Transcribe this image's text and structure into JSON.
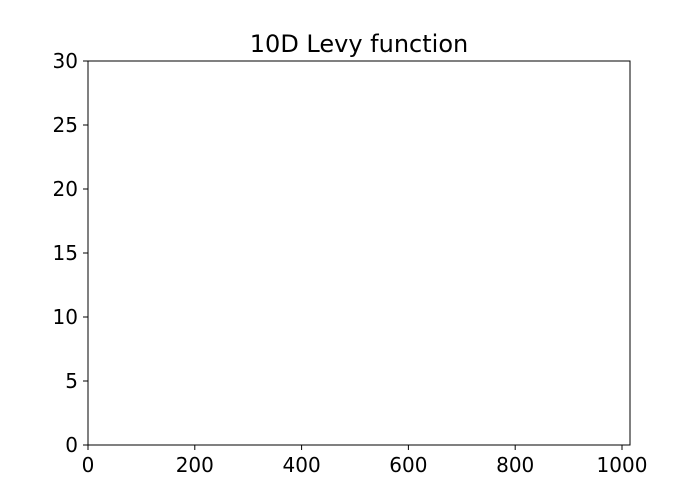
{
  "chart_data": {
    "type": "line",
    "title": "10D Levy function",
    "xlabel": "",
    "ylabel": "",
    "xlim": [
      0,
      1015
    ],
    "ylim": [
      0,
      30
    ],
    "xticks": [
      0,
      200,
      400,
      600,
      800,
      1000
    ],
    "yticks": [
      0,
      5,
      10,
      15,
      20,
      25,
      30
    ],
    "grid": false,
    "series": []
  }
}
